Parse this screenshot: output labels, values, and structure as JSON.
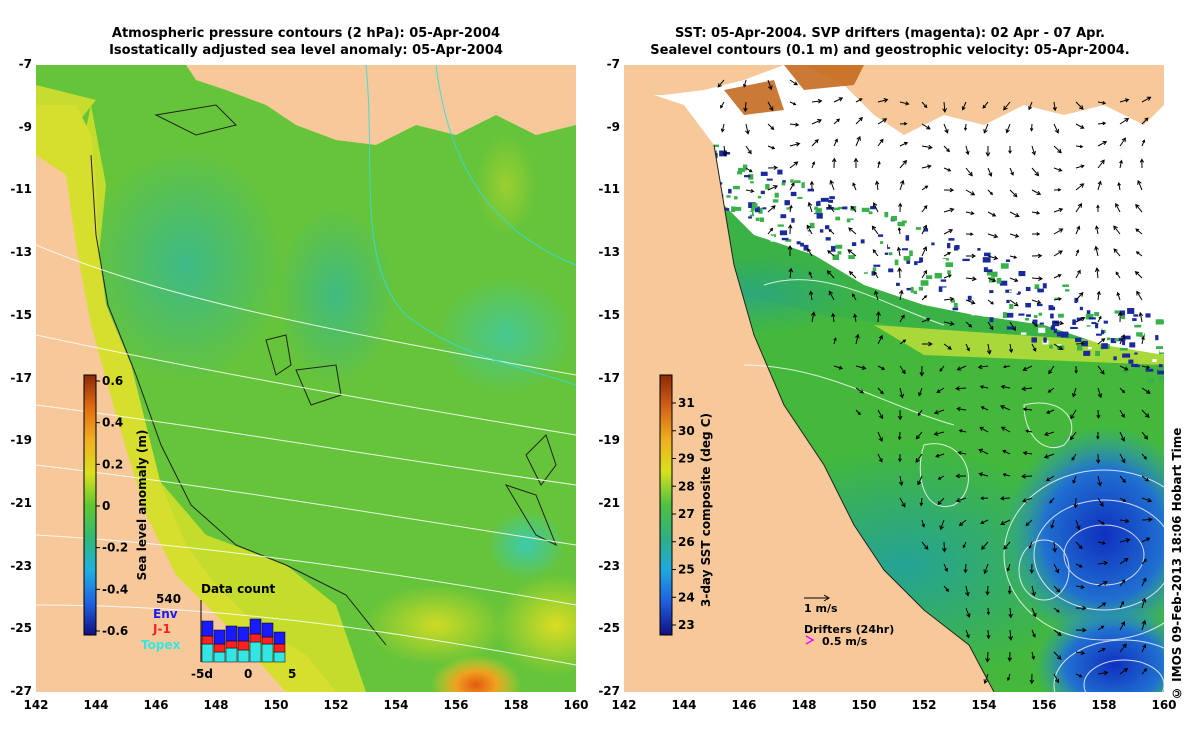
{
  "left_panel": {
    "title_line1": "Atmospheric pressure contours (2 hPa): 05-Apr-2004",
    "title_line2": "Isostatically adjusted sea level anomaly: 05-Apr-2004",
    "colorbar_label": "Sea level anomaly (m)",
    "colorbar_ticks": [
      "0.6",
      "0.4",
      "0.2",
      "0",
      "-0.2",
      "-0.4",
      "-0.6"
    ],
    "data_count": {
      "title": "Data count",
      "max_label": "540",
      "legend": [
        {
          "label": "Env",
          "color": "#1a1aff"
        },
        {
          "label": "J-1",
          "color": "#ff2020"
        },
        {
          "label": "Topex",
          "color": "#33e6e6"
        }
      ],
      "x_labels": [
        "-5d",
        "0",
        "5"
      ]
    }
  },
  "right_panel": {
    "title_line1": "SST: 05-Apr-2004. SVP drifters (magenta): 02 Apr - 07 Apr.",
    "title_line2": "Sealevel contours (0.1 m) and geostrophic velocity: 05-Apr-2004.",
    "colorbar_label": "3-day SST composite (deg C)",
    "colorbar_ticks": [
      "31",
      "30",
      "29",
      "28",
      "27",
      "26",
      "25",
      "24",
      "23"
    ],
    "velocity_scale_label": "1 m/s",
    "drifters_label": "Drifters (24hr)",
    "drifters_speed_label": "0.5 m/s"
  },
  "axes": {
    "lat_labels": [
      "-7",
      "-9",
      "-11",
      "-13",
      "-15",
      "-17",
      "-19",
      "-21",
      "-23",
      "-25",
      "-27"
    ],
    "lon_labels": [
      "142",
      "144",
      "146",
      "148",
      "150",
      "152",
      "154",
      "156",
      "158",
      "160"
    ]
  },
  "credit": "© IMOS 09-Feb-2013 18:06 Hobart Time",
  "colors": {
    "land": "#f7c99a",
    "ocean_mid": "#66cc33",
    "cloud": "#ffffff",
    "magenta": "#ff00ff"
  }
}
